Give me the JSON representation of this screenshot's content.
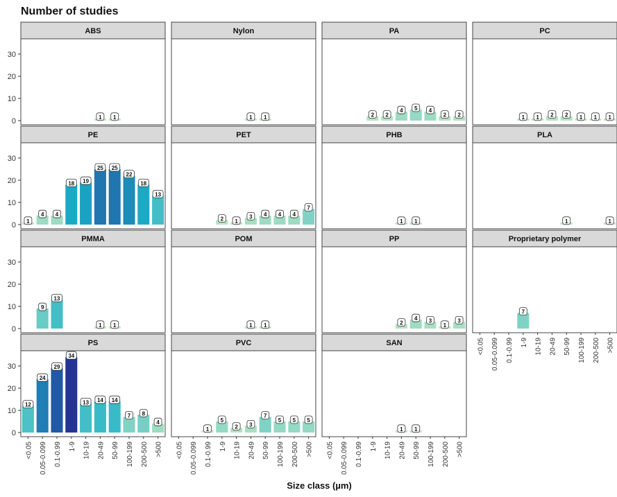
{
  "title": "Number of studies",
  "xlabel": "Size class (µm)",
  "colors": {
    "panel_border": "#444444",
    "strip_fill": "#d9d9d9",
    "scale_low": "#c7e9c0",
    "scale_mid": "#1ab1c9",
    "scale_high": "#253494"
  },
  "chart_data": {
    "type": "bar",
    "faceted": true,
    "ylim": [
      0,
      35
    ],
    "yticks": [
      0,
      10,
      20,
      30
    ],
    "grid": false,
    "categories": [
      "<0.05",
      "0.05-0.099",
      "0.1-0.99",
      "1-9",
      "10-19",
      "20-49",
      "50-99",
      "100-199",
      "200-500",
      ">500"
    ],
    "panels": [
      {
        "name": "ABS",
        "values": [
          null,
          null,
          null,
          null,
          null,
          1,
          1,
          null,
          null,
          null
        ]
      },
      {
        "name": "Nylon",
        "values": [
          null,
          null,
          null,
          null,
          null,
          1,
          1,
          null,
          null,
          null
        ]
      },
      {
        "name": "PA",
        "values": [
          null,
          null,
          null,
          2,
          2,
          4,
          5,
          4,
          2,
          2
        ]
      },
      {
        "name": "PC",
        "values": [
          null,
          null,
          null,
          1,
          1,
          2,
          2,
          1,
          1,
          1
        ]
      },
      {
        "name": "PE",
        "values": [
          1,
          4,
          4,
          18,
          19,
          25,
          25,
          22,
          18,
          13
        ]
      },
      {
        "name": "PET",
        "values": [
          null,
          null,
          null,
          2,
          1,
          3,
          4,
          4,
          4,
          7
        ]
      },
      {
        "name": "PHB",
        "values": [
          null,
          null,
          null,
          null,
          null,
          1,
          1,
          null,
          null,
          null
        ]
      },
      {
        "name": "PLA",
        "values": [
          null,
          null,
          null,
          null,
          null,
          null,
          1,
          null,
          null,
          1
        ]
      },
      {
        "name": "PMMA",
        "values": [
          null,
          9,
          13,
          null,
          null,
          1,
          1,
          null,
          null,
          null
        ]
      },
      {
        "name": "POM",
        "values": [
          null,
          null,
          null,
          null,
          null,
          1,
          1,
          null,
          null,
          null
        ]
      },
      {
        "name": "PP",
        "values": [
          null,
          null,
          null,
          null,
          null,
          2,
          4,
          3,
          1,
          3
        ]
      },
      {
        "name": "Proprietary polymer",
        "values": [
          null,
          null,
          null,
          7,
          null,
          null,
          null,
          null,
          null,
          null
        ]
      },
      {
        "name": "PS",
        "values": [
          12,
          24,
          29,
          34,
          13,
          14,
          14,
          7,
          8,
          4
        ]
      },
      {
        "name": "PVC",
        "values": [
          null,
          null,
          1,
          5,
          2,
          3,
          7,
          5,
          5,
          5
        ]
      },
      {
        "name": "SAN",
        "values": [
          null,
          null,
          null,
          null,
          null,
          1,
          1,
          null,
          null,
          null
        ]
      }
    ]
  }
}
